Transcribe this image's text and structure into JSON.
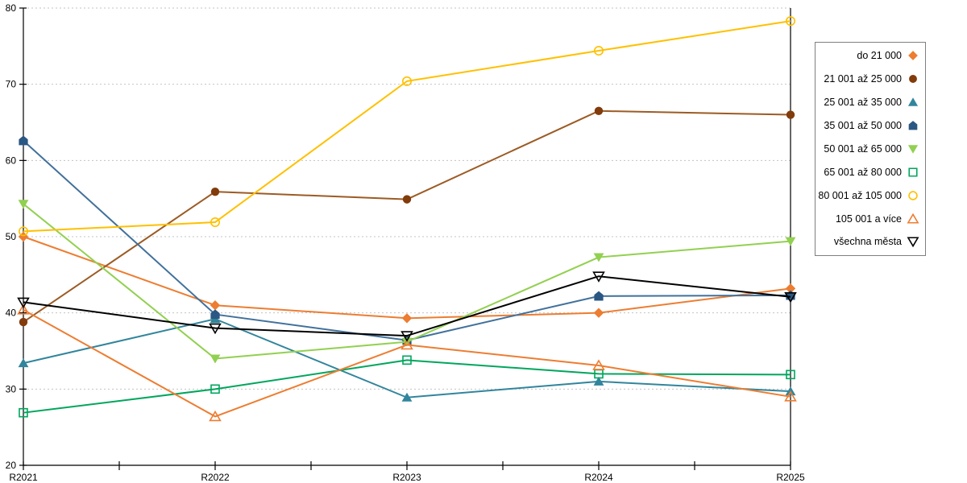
{
  "chart_data": {
    "type": "line",
    "title": "",
    "xlabel": "",
    "ylabel": "",
    "categories": [
      "R2021",
      "R2022",
      "R2023",
      "R2024",
      "R2025"
    ],
    "ylim": [
      20,
      80
    ],
    "yticks": [
      20,
      30,
      40,
      50,
      60,
      70,
      80
    ],
    "grid": "horizontal-dashed",
    "legend_position": "right",
    "series": [
      {
        "name": "do 21 000",
        "color": "#ED7D31",
        "marker": "diamond",
        "fill": "solid",
        "values": [
          50.0,
          41.0,
          39.3,
          40.0,
          43.2
        ]
      },
      {
        "name": "21 001 až 25 000",
        "color": "#9C5B24",
        "marker_color": "#823B0B",
        "marker": "circle",
        "fill": "solid",
        "values": [
          38.8,
          55.9,
          54.9,
          66.5,
          66.0
        ]
      },
      {
        "name": "25 001 až 35 000",
        "color": "#31859C",
        "marker": "triangle-up",
        "fill": "solid",
        "values": [
          33.4,
          39.2,
          28.9,
          31.0,
          29.7
        ]
      },
      {
        "name": "35 001 až 50 000",
        "color": "#41719C",
        "marker_color": "#2A5783",
        "marker": "pentagon",
        "fill": "solid",
        "values": [
          62.6,
          39.8,
          36.4,
          42.2,
          42.3
        ]
      },
      {
        "name": "50 001 až 65 000",
        "color": "#92D050",
        "marker": "triangle-down",
        "fill": "solid",
        "values": [
          54.3,
          34.0,
          36.2,
          47.3,
          49.4
        ]
      },
      {
        "name": "65 001 až 80 000",
        "color": "#00A65D",
        "marker": "square",
        "fill": "open",
        "values": [
          26.9,
          30.0,
          33.8,
          32.0,
          31.9
        ]
      },
      {
        "name": "80 001 až 105 000",
        "color": "#FFC000",
        "marker": "circle",
        "fill": "open",
        "values": [
          50.7,
          51.9,
          70.4,
          74.4,
          78.3
        ]
      },
      {
        "name": "105 001 a více",
        "color": "#ED7D31",
        "marker": "triangle-up",
        "fill": "open",
        "values": [
          40.4,
          26.4,
          35.8,
          33.1,
          29.0
        ]
      },
      {
        "name": "všechna města",
        "color": "#000000",
        "marker": "triangle-down",
        "fill": "open",
        "values": [
          41.4,
          38.0,
          37.0,
          44.8,
          42.1
        ]
      }
    ]
  },
  "colors": {
    "background": "#FFFFFF",
    "axis": "#000000",
    "gridline": "#C3C3C3",
    "legend_border": "#7F7F7F"
  }
}
